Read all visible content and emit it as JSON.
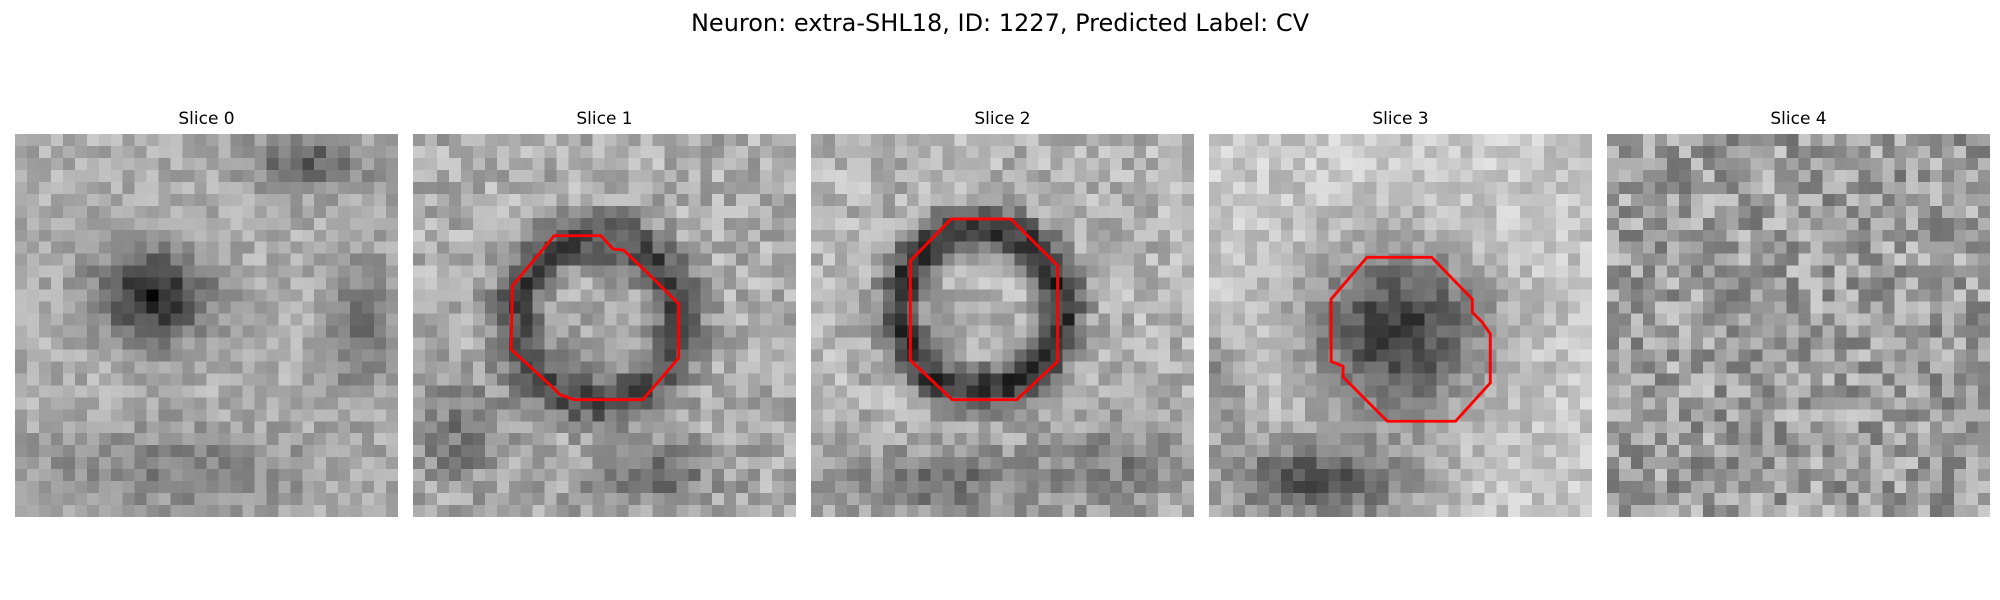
{
  "figure": {
    "title": "Neuron: extra-SHL18, ID: 1227, Predicted Label: CV"
  },
  "colors": {
    "contour": "#ff0000",
    "background": "#ffffff",
    "colormap": "gray"
  },
  "slices": [
    {
      "title": "Slice 0",
      "has_contour": false
    },
    {
      "title": "Slice 1",
      "has_contour": true
    },
    {
      "title": "Slice 2",
      "has_contour": true
    },
    {
      "title": "Slice 3",
      "has_contour": true
    },
    {
      "title": "Slice 4",
      "has_contour": false
    }
  ]
}
